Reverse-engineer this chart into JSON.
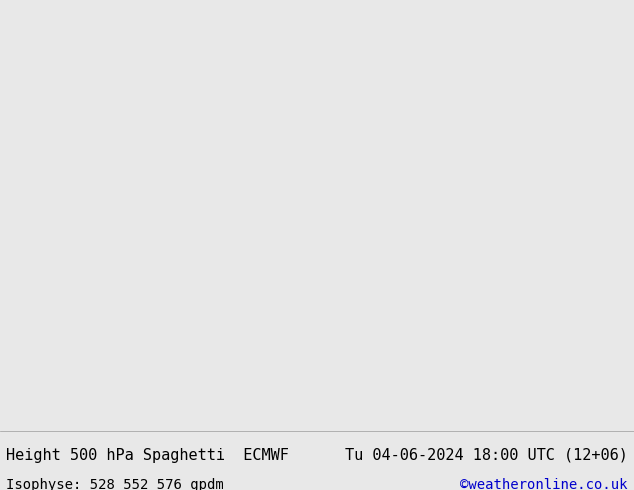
{
  "title_left": "Height 500 hPa Spaghetti  ECMWF",
  "title_right": "Tu 04-06-2024 18:00 UTC (12+06)",
  "subtitle_left": "Isophyse: 528 552 576 gpdm",
  "subtitle_right": "©weatheronline.co.uk",
  "subtitle_right_color": "#0000cc",
  "background_color": "#d3d3d3",
  "map_bg_land_color": "#90ee90",
  "map_bg_sea_color": "#dcdcdc",
  "footer_bg": "#e8e8e8",
  "text_color": "#000000",
  "font_size_title": 11,
  "font_size_subtitle": 10,
  "fig_width": 6.34,
  "fig_height": 4.9,
  "dpi": 100,
  "contour_colors": [
    "#ff0000",
    "#00aa00",
    "#0000ff",
    "#ff00ff",
    "#00cccc",
    "#ffaa00",
    "#888800",
    "#555555"
  ],
  "map_extent": [
    -80,
    50,
    25,
    80
  ]
}
